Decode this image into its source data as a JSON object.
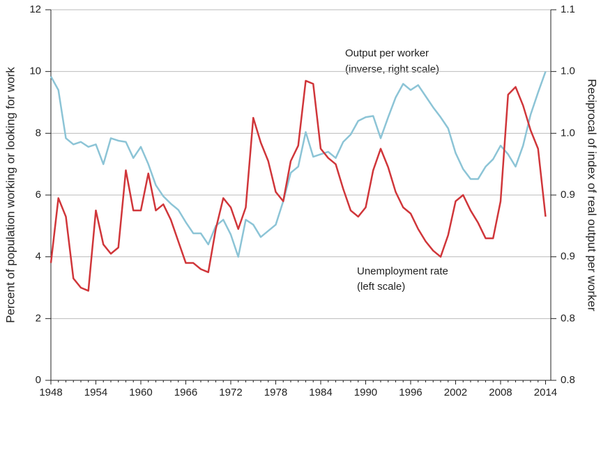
{
  "chart_data": {
    "type": "line",
    "annotations": [
      "Output per worker",
      "(inverse, right scale)",
      "Unemployment rate",
      "(left scale)"
    ],
    "ylabel": "Percent of population working or looking for work",
    "y2label": "Reciprocal of index of real output per worker",
    "x": [
      1948,
      1949,
      1950,
      1951,
      1952,
      1953,
      1954,
      1955,
      1956,
      1957,
      1958,
      1959,
      1960,
      1961,
      1962,
      1963,
      1964,
      1965,
      1966,
      1967,
      1968,
      1969,
      1970,
      1971,
      1972,
      1973,
      1974,
      1975,
      1976,
      1977,
      1978,
      1979,
      1980,
      1981,
      1982,
      1983,
      1984,
      1985,
      1986,
      1987,
      1988,
      1989,
      1990,
      1991,
      1992,
      1993,
      1994,
      1995,
      1996,
      1997,
      1998,
      1999,
      2000,
      2001,
      2002,
      2003,
      2004,
      2005,
      2006,
      2007,
      2008,
      2009,
      2010,
      2011,
      2012,
      2013,
      2014
    ],
    "series": [
      {
        "name": "Unemployment rate",
        "color": "#d0363a",
        "axis": "y",
        "values": [
          3.8,
          5.9,
          5.3,
          3.3,
          3.0,
          2.9,
          5.5,
          4.4,
          4.1,
          4.3,
          6.8,
          5.5,
          5.5,
          6.7,
          5.5,
          5.7,
          5.2,
          4.5,
          3.8,
          3.8,
          3.6,
          3.5,
          4.9,
          5.9,
          5.6,
          4.9,
          5.6,
          8.5,
          7.7,
          7.1,
          6.1,
          5.8,
          7.1,
          7.6,
          9.7,
          9.6,
          7.5,
          7.2,
          7.0,
          6.2,
          5.5,
          5.3,
          5.6,
          6.8,
          7.5,
          6.9,
          6.1,
          5.6,
          5.4,
          4.9,
          4.5,
          4.2,
          4.0,
          4.7,
          5.8,
          6.0,
          5.5,
          5.1,
          4.6,
          4.6,
          5.8,
          9.25,
          9.5,
          8.9,
          8.1,
          7.5,
          5.3
        ]
      },
      {
        "name": "Output per worker",
        "color": "#8cc4d6",
        "axis": "y2",
        "values": [
          1.046,
          1.035,
          0.996,
          0.991,
          0.993,
          0.989,
          0.991,
          0.975,
          0.996,
          0.994,
          0.993,
          0.98,
          0.989,
          0.975,
          0.958,
          0.949,
          0.943,
          0.938,
          0.928,
          0.919,
          0.919,
          0.91,
          0.925,
          0.93,
          0.918,
          0.9,
          0.93,
          0.926,
          0.916,
          0.921,
          0.926,
          0.945,
          0.968,
          0.973,
          1.001,
          0.981,
          0.983,
          0.985,
          0.98,
          0.993,
          0.999,
          1.01,
          1.013,
          1.014,
          0.996,
          1.013,
          1.029,
          1.04,
          1.035,
          1.039,
          1.03,
          1.021,
          1.013,
          1.004,
          0.984,
          0.971,
          0.963,
          0.963,
          0.973,
          0.979,
          0.99,
          0.983,
          0.973,
          0.99,
          1.015,
          1.033,
          1.05
        ]
      }
    ],
    "xlim": [
      1948,
      2014.7
    ],
    "xticks": [
      1948,
      1954,
      1960,
      1966,
      1972,
      1978,
      1984,
      1990,
      1996,
      2002,
      2008,
      2014
    ],
    "ylim": [
      0,
      12
    ],
    "yticks": [
      0,
      2,
      4,
      6,
      8,
      10,
      12
    ],
    "y2lim": [
      0.8,
      1.1
    ],
    "y2ticks": [
      {
        "value": 0.8,
        "label": "0.8"
      },
      {
        "value": 0.85,
        "label": "0.8"
      },
      {
        "value": 0.9,
        "label": "0.9"
      },
      {
        "value": 0.95,
        "label": "0.9"
      },
      {
        "value": 1.0,
        "label": "1.0"
      },
      {
        "value": 1.05,
        "label": "1.0"
      },
      {
        "value": 1.1,
        "label": "1.1"
      }
    ],
    "grid": true
  }
}
